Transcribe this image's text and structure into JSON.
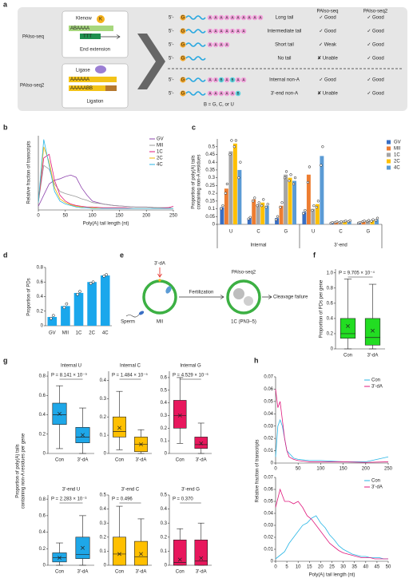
{
  "panel_a": {
    "label": "a",
    "methods": [
      {
        "name": "PAlso-seq",
        "enzyme": "Klenow",
        "enzyme_mark": "K",
        "template": "ABAAAA",
        "primer": "TTT",
        "step": "End extension"
      },
      {
        "name": "PAlso-seq2",
        "enzyme": "Ligase",
        "template": "AAAAAA",
        "product": "AAAAABB",
        "step": "Ligation"
      }
    ],
    "columns": [
      "PAlso-seq",
      "PAlso-seq2"
    ],
    "prefix": "5'-",
    "head": "G",
    "letter_colors": {
      "A": "#f4a3dd",
      "B": "#5fd3e0"
    },
    "rows": [
      {
        "molecule": "AAAAAAAAAA",
        "label": "Long tail",
        "seq": "✓ Good",
        "seq_color": "#2e9e3e",
        "seq2": "✓ Good",
        "seq2_color": "#2e9e3e"
      },
      {
        "molecule": "AAAAAAA",
        "label": "Intermediate tail",
        "seq": "✓ Good",
        "seq_color": "#2e9e3e",
        "seq2": "✓ Good",
        "seq2_color": "#2e9e3e"
      },
      {
        "molecule": "AAAA",
        "label": "Short tail",
        "seq": "✓ Weak",
        "seq_color": "#f0a000",
        "seq2": "✓ Good",
        "seq2_color": "#2e9e3e"
      },
      {
        "label": "No tail",
        "seq": "✘ Unable",
        "seq_color": "#e02020",
        "seq2": "✓ Good",
        "seq2_color": "#2e9e3e"
      },
      {
        "molecule": "AABABAA",
        "label": "Internal non-A",
        "label_color": "#2962c9",
        "seq": "✓ Good",
        "seq_color": "#2e9e3e",
        "seq2": "✓ Good",
        "seq2_color": "#2e9e3e"
      },
      {
        "molecule": "AAAAAB",
        "label": "3'-end non-A",
        "label_color": "#2962c9",
        "seq": "✘ Unable",
        "seq_color": "#e02020",
        "seq2": "✓ Good",
        "seq2_color": "#2e9e3e"
      }
    ],
    "legend": "B = G, C, or U"
  },
  "panel_e": {
    "label": "e",
    "drug": "3'-dA",
    "sperm": "Sperm",
    "stage": "MII",
    "step": "Fertilization",
    "method": "PAlso-seq2",
    "embryo": "1C (PN3–5)",
    "outcome": "Cleavage failure"
  },
  "chart_data": [
    {
      "type": "line",
      "panel": "b",
      "xlabel": "Poly(A) tail length (nt)",
      "ylabel": "Relative fraction of transcripts",
      "x": [
        0,
        10,
        20,
        30,
        40,
        50,
        60,
        70,
        80,
        90,
        100,
        120,
        140,
        160,
        180,
        200,
        220,
        240,
        250
      ],
      "xlim": [
        0,
        250
      ],
      "xticks": [
        0,
        50,
        100,
        150,
        200,
        250
      ],
      "ylim": [
        0,
        1
      ],
      "legend": "upper right",
      "series": [
        {
          "name": "GV",
          "color": "#8e44ad",
          "values": [
            0.05,
            0.2,
            0.35,
            0.4,
            0.42,
            0.45,
            0.47,
            0.44,
            0.3,
            0.2,
            0.12,
            0.08,
            0.06,
            0.05,
            0.04,
            0.04,
            0.03,
            0.03,
            0.02
          ]
        },
        {
          "name": "MII",
          "color": "#9a9a9a",
          "values": [
            0.1,
            0.6,
            0.55,
            0.35,
            0.25,
            0.22,
            0.2,
            0.18,
            0.15,
            0.13,
            0.1,
            0.08,
            0.06,
            0.05,
            0.04,
            0.04,
            0.03,
            0.03,
            0.02
          ]
        },
        {
          "name": "1C",
          "color": "#e0197d",
          "values": [
            0.1,
            0.7,
            0.75,
            0.4,
            0.2,
            0.12,
            0.08,
            0.06,
            0.05,
            0.04,
            0.04,
            0.03,
            0.03,
            0.03,
            0.02,
            0.02,
            0.02,
            0.03,
            0.05
          ]
        },
        {
          "name": "2C",
          "color": "#f4b400",
          "values": [
            0.1,
            0.85,
            0.65,
            0.3,
            0.15,
            0.1,
            0.07,
            0.05,
            0.04,
            0.03,
            0.03,
            0.02,
            0.02,
            0.02,
            0.02,
            0.02,
            0.02,
            0.02,
            0.02
          ]
        },
        {
          "name": "4C",
          "color": "#29b6e6",
          "values": [
            0.1,
            0.95,
            0.6,
            0.25,
            0.12,
            0.08,
            0.06,
            0.04,
            0.03,
            0.03,
            0.02,
            0.02,
            0.02,
            0.02,
            0.02,
            0.02,
            0.02,
            0.02,
            0.02
          ]
        }
      ]
    },
    {
      "type": "bar",
      "panel": "c",
      "ylabel": [
        "Proportion of poly(A) tails",
        "containing non-A residues"
      ],
      "groups": [
        {
          "name": "Internal",
          "categories": [
            "U",
            "C",
            "G"
          ]
        },
        {
          "name": "3'-end",
          "categories": [
            "U",
            "C",
            "G"
          ]
        }
      ],
      "ylim": [
        0,
        0.55
      ],
      "yticks": [
        0,
        0.05,
        0.1,
        0.15,
        0.2,
        0.25,
        0.3,
        0.35,
        0.4,
        0.45,
        0.5
      ],
      "legend": "right",
      "series": [
        {
          "name": "GV",
          "color": "#3a6fc4",
          "values": [
            0.11,
            0.04,
            0.04,
            0.08,
            0.01,
            0.01
          ],
          "points": [
            [
              0.1,
              0.12
            ],
            [
              0.035,
              0.045
            ],
            [
              0.03,
              0.05
            ],
            [
              0.07,
              0.09
            ],
            [
              0.008,
              0.012
            ],
            [
              0.008,
              0.012
            ]
          ]
        },
        {
          "name": "MII",
          "color": "#ed7d31",
          "values": [
            0.23,
            0.16,
            0.12,
            0.32,
            0.015,
            0.02
          ],
          "points": [
            [
              0.2,
              0.26
            ],
            [
              0.15,
              0.17
            ],
            [
              0.11,
              0.14
            ],
            [
              0.27,
              0.37
            ],
            [
              0.013,
              0.017
            ],
            [
              0.018,
              0.022
            ]
          ]
        },
        {
          "name": "1C",
          "color": "#a5a5a5",
          "values": [
            0.47,
            0.13,
            0.32,
            0.1,
            0.015,
            0.02
          ],
          "points": [
            [
              0.45,
              0.54
            ],
            [
              0.12,
              0.14
            ],
            [
              0.3,
              0.34
            ],
            [
              0.09,
              0.12
            ],
            [
              0.013,
              0.017
            ],
            [
              0.018,
              0.025
            ]
          ]
        },
        {
          "name": "2C",
          "color": "#ffc000",
          "values": [
            0.52,
            0.14,
            0.3,
            0.13,
            0.02,
            0.025
          ],
          "points": [
            [
              0.5,
              0.54
            ],
            [
              0.12,
              0.16
            ],
            [
              0.28,
              0.32
            ],
            [
              0.11,
              0.15
            ],
            [
              0.018,
              0.022
            ],
            [
              0.02,
              0.03
            ]
          ]
        },
        {
          "name": "4C",
          "color": "#5b9bd5",
          "values": [
            0.35,
            0.12,
            0.28,
            0.44,
            0.02,
            0.03
          ],
          "points": [
            [
              0.3,
              0.4
            ],
            [
              0.11,
              0.13
            ],
            [
              0.26,
              0.3
            ],
            [
              0.38,
              0.5
            ],
            [
              0.018,
              0.024
            ],
            [
              0.025,
              0.04
            ]
          ]
        }
      ]
    },
    {
      "type": "bar",
      "panel": "d",
      "ylabel": "Proportion of PDs",
      "color": "#1aa7ec",
      "categories": [
        "GV",
        "MII",
        "1C",
        "2C",
        "4C"
      ],
      "values": [
        0.12,
        0.27,
        0.45,
        0.6,
        0.69
      ],
      "points": [
        [
          0.1,
          0.14
        ],
        [
          0.25,
          0.3
        ],
        [
          0.43,
          0.47
        ],
        [
          0.58,
          0.6
        ],
        [
          0.68,
          0.7
        ]
      ],
      "ylim": [
        0,
        0.8
      ],
      "yticks": [
        0,
        0.2,
        0.4,
        0.6,
        0.8
      ]
    },
    {
      "type": "box",
      "panel": "f",
      "ylabel": "Proportion of PDs per gene",
      "color": "#22dd22",
      "annotation": "P = 9.705 × 10⁻⁴",
      "categories": [
        "Con",
        "3'-dA"
      ],
      "ylim": [
        0,
        1.05
      ],
      "yticks": [
        0,
        0.2,
        0.4,
        0.6,
        0.8,
        {
          "value": 1,
          "label": "1.0"
        }
      ],
      "boxes": [
        {
          "whislo": 0,
          "q1": 0.14,
          "med": 0.2,
          "q3": 0.4,
          "whishi": 0.92,
          "mean": 0.3
        },
        {
          "whislo": 0,
          "q1": 0.05,
          "med": 0.15,
          "q3": 0.4,
          "whishi": 0.85,
          "mean": 0.24
        }
      ]
    },
    {
      "type": "box",
      "panel": "g",
      "title": "Internal U",
      "ylabel": [
        "Proportion of poly(A) tails",
        "containing non-A residues per gene"
      ],
      "color": "#1ea7e8",
      "annotation": "P = 8.141 × 10⁻⁹",
      "categories": [
        "Con",
        "3'-dA"
      ],
      "ylim": [
        0,
        0.85
      ],
      "yticks": [
        0,
        0.2,
        0.4,
        0.6,
        0.8
      ],
      "boxes": [
        {
          "whislo": 0.05,
          "q1": 0.3,
          "med": 0.4,
          "q3": 0.52,
          "whishi": 0.7,
          "mean": 0.41
        },
        {
          "whislo": 0,
          "q1": 0.11,
          "med": 0.17,
          "q3": 0.27,
          "whishi": 0.47,
          "mean": 0.19
        }
      ]
    },
    {
      "type": "box",
      "title": "Internal C",
      "color": "#ffc000",
      "annotation": "P = 1.484 × 10⁻⁵",
      "categories": [
        "Con",
        "3'-dA"
      ],
      "ylim": [
        0,
        0.45
      ],
      "yticks": [
        0,
        0.1,
        0.2,
        0.3,
        0.4
      ],
      "boxes": [
        {
          "whislo": 0.02,
          "q1": 0.09,
          "med": 0.12,
          "q3": 0.2,
          "whishi": 0.34,
          "mean": 0.14
        },
        {
          "whislo": 0,
          "q1": 0.01,
          "med": 0.05,
          "q3": 0.09,
          "whishi": 0.13,
          "mean": 0.05
        }
      ]
    },
    {
      "type": "box",
      "title": "Internal G",
      "color": "#e8175d",
      "annotation": "P = 4.529 × 10⁻⁶",
      "categories": [
        "Con",
        "3'-dA"
      ],
      "ylim": [
        0,
        0.65
      ],
      "yticks": [
        0,
        0.1,
        0.2,
        0.3,
        0.4,
        0.5,
        0.6
      ],
      "boxes": [
        {
          "whislo": 0.08,
          "q1": 0.2,
          "med": 0.3,
          "q3": 0.42,
          "whishi": 0.6,
          "mean": 0.3
        },
        {
          "whislo": 0,
          "q1": 0.04,
          "med": 0.07,
          "q3": 0.13,
          "whishi": 0.24,
          "mean": 0.08
        }
      ]
    },
    {
      "type": "box",
      "title": "3'-end U",
      "color": "#1ea7e8",
      "annotation": "P = 2.283 × 10⁻³",
      "categories": [
        "Con",
        "3'-dA"
      ],
      "ylim": [
        0,
        0.85
      ],
      "yticks": [
        0,
        0.2,
        0.4,
        0.6,
        0.8
      ],
      "boxes": [
        {
          "whislo": 0,
          "q1": 0.04,
          "med": 0.09,
          "q3": 0.15,
          "whishi": 0.27,
          "mean": 0.09
        },
        {
          "whislo": 0,
          "q1": 0.08,
          "med": 0.13,
          "q3": 0.34,
          "whishi": 0.6,
          "mean": 0.21
        }
      ]
    },
    {
      "type": "box",
      "title": "3'-end C",
      "color": "#ffc000",
      "annotation": "P = 0.496",
      "categories": [
        "Con",
        "3'-dA"
      ],
      "ylim": [
        0,
        0.5
      ],
      "yticks": [
        0,
        0.1,
        0.2,
        0.3,
        0.4,
        0.5
      ],
      "boxes": [
        {
          "whislo": 0,
          "q1": 0,
          "med": 0.08,
          "q3": 0.2,
          "whishi": 0.42,
          "mean": 0.08
        },
        {
          "whislo": 0,
          "q1": 0,
          "med": 0.06,
          "q3": 0.17,
          "whishi": 0.33,
          "mean": 0.08
        }
      ]
    },
    {
      "type": "box",
      "title": "3'-end G",
      "color": "#e8175d",
      "annotation": "P = 0.370",
      "categories": [
        "Con",
        "3'-dA"
      ],
      "ylim": [
        0,
        0.5
      ],
      "yticks": [
        0,
        0.1,
        0.2,
        0.3,
        0.4,
        0.5
      ],
      "boxes": [
        {
          "whislo": 0,
          "q1": 0,
          "med": 0.02,
          "q3": 0.18,
          "whishi": 0.26,
          "mean": 0.04
        },
        {
          "whislo": 0,
          "q1": 0,
          "med": 0.03,
          "q3": 0.18,
          "whishi": 0.3,
          "mean": 0.05
        }
      ]
    },
    {
      "type": "line",
      "panel": "h",
      "ylabel": "Relative fraction of transcripts",
      "legend": "upper right",
      "x": [
        0,
        5,
        10,
        15,
        20,
        25,
        30,
        40,
        50,
        75,
        100,
        150,
        200,
        250
      ],
      "xlim": [
        0,
        250
      ],
      "xticks": [
        0,
        50,
        100,
        150,
        200,
        250
      ],
      "ylim": [
        0,
        0.07
      ],
      "yticks": [
        0,
        0.01,
        0.02,
        0.03,
        0.04,
        0.05,
        0.06,
        0.07
      ],
      "series": [
        {
          "name": "Con",
          "color": "#29b6e6",
          "values": [
            0.005,
            0.03,
            0.035,
            0.03,
            0.02,
            0.01,
            0.008,
            0.004,
            0.003,
            0.002,
            0.002,
            0.001,
            0.001,
            0.005
          ]
        },
        {
          "name": "3'-dA",
          "color": "#e0197d",
          "values": [
            0.06,
            0.045,
            0.05,
            0.035,
            0.02,
            0.01,
            0.005,
            0.003,
            0.002,
            0.001,
            0.001,
            0.001,
            0.0005,
            0.001
          ]
        }
      ]
    },
    {
      "type": "line",
      "xlabel": "Poly(A) tail length (nt)",
      "legend": "upper right",
      "x": [
        0,
        2,
        4,
        6,
        8,
        10,
        12,
        14,
        16,
        18,
        20,
        22,
        24,
        26,
        28,
        30,
        32,
        34,
        36,
        38,
        40,
        42,
        44,
        46,
        48,
        50
      ],
      "xlim": [
        0,
        50
      ],
      "xticks": [
        0,
        5,
        10,
        15,
        20,
        25,
        30,
        35,
        40,
        45,
        50
      ],
      "ylim": [
        0,
        0.07
      ],
      "yticks": [
        0,
        0.01,
        0.02,
        0.03,
        0.04,
        0.05,
        0.06,
        0.07
      ],
      "series": [
        {
          "name": "Con",
          "color": "#29b6e6",
          "values": [
            0.002,
            0.005,
            0.008,
            0.015,
            0.02,
            0.025,
            0.03,
            0.032,
            0.036,
            0.038,
            0.032,
            0.028,
            0.022,
            0.018,
            0.013,
            0.01,
            0.008,
            0.006,
            0.005,
            0.004,
            0.004,
            0.003,
            0.003,
            0.003,
            0.002,
            0.002
          ]
        },
        {
          "name": "3'-dA",
          "color": "#e0197d",
          "values": [
            0.045,
            0.06,
            0.05,
            0.05,
            0.048,
            0.05,
            0.045,
            0.038,
            0.035,
            0.03,
            0.025,
            0.02,
            0.015,
            0.012,
            0.009,
            0.007,
            0.006,
            0.005,
            0.004,
            0.003,
            0.003,
            0.003,
            0.002,
            0.002,
            0.002,
            0.002
          ]
        }
      ]
    }
  ]
}
